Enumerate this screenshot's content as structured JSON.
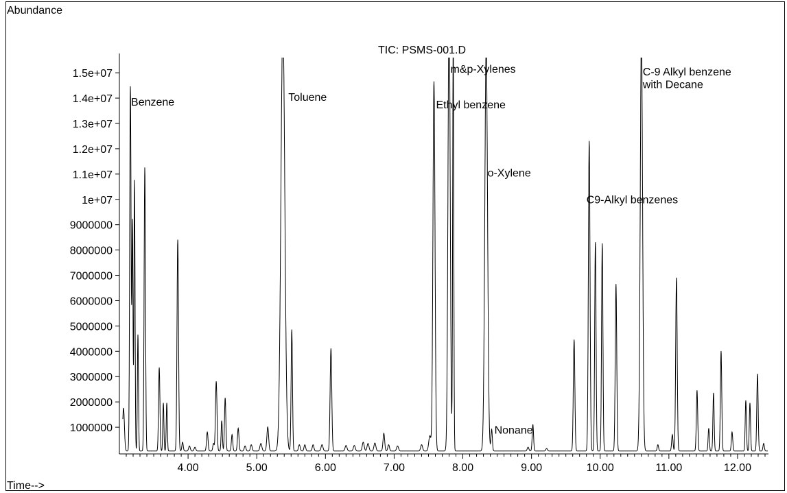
{
  "chart_data": {
    "type": "line",
    "title": "TIC: PSMS-001.D",
    "xlabel": "Time-->",
    "ylabel": "Abundance",
    "xlim": [
      3.0,
      12.45
    ],
    "ylim": [
      0,
      15600000
    ],
    "x_ticks": [
      {
        "value": 4.0,
        "label": "4.00"
      },
      {
        "value": 5.0,
        "label": "5.00"
      },
      {
        "value": 6.0,
        "label": "6.00"
      },
      {
        "value": 7.0,
        "label": "7.00"
      },
      {
        "value": 8.0,
        "label": "8.00"
      },
      {
        "value": 9.0,
        "label": "9.00"
      },
      {
        "value": 10.0,
        "label": "10.00"
      },
      {
        "value": 11.0,
        "label": "11.00"
      },
      {
        "value": 12.0,
        "label": "12.00"
      }
    ],
    "y_ticks": [
      {
        "value": 1000000,
        "label": "1000000"
      },
      {
        "value": 2000000,
        "label": "2000000"
      },
      {
        "value": 3000000,
        "label": "3000000"
      },
      {
        "value": 4000000,
        "label": "4000000"
      },
      {
        "value": 5000000,
        "label": "5000000"
      },
      {
        "value": 6000000,
        "label": "6000000"
      },
      {
        "value": 7000000,
        "label": "7000000"
      },
      {
        "value": 8000000,
        "label": "8000000"
      },
      {
        "value": 9000000,
        "label": "9000000"
      },
      {
        "value": 10000000,
        "label": "1e+07"
      },
      {
        "value": 11000000,
        "label": "1.1e+07"
      },
      {
        "value": 12000000,
        "label": "1.2e+07"
      },
      {
        "value": 13000000,
        "label": "1.3e+07"
      },
      {
        "value": 14000000,
        "label": "1.4e+07"
      },
      {
        "value": 15000000,
        "label": "1.5e+07"
      }
    ],
    "baseline": 60000,
    "peaks": [
      {
        "t": 3.06,
        "h": 1700000,
        "w": 0.013
      },
      {
        "t": 3.16,
        "h": 14400000,
        "w": 0.01
      },
      {
        "t": 3.19,
        "h": 9000000,
        "w": 0.008
      },
      {
        "t": 3.22,
        "h": 10700000,
        "w": 0.008
      },
      {
        "t": 3.27,
        "h": 4600000,
        "w": 0.008
      },
      {
        "t": 3.37,
        "h": 11200000,
        "w": 0.01
      },
      {
        "t": 3.58,
        "h": 3300000,
        "w": 0.01
      },
      {
        "t": 3.64,
        "h": 1900000,
        "w": 0.008
      },
      {
        "t": 3.69,
        "h": 1900000,
        "w": 0.008
      },
      {
        "t": 3.85,
        "h": 8350000,
        "w": 0.011
      },
      {
        "t": 3.92,
        "h": 350000,
        "w": 0.01
      },
      {
        "t": 4.02,
        "h": 200000,
        "w": 0.012
      },
      {
        "t": 4.1,
        "h": 150000,
        "w": 0.012
      },
      {
        "t": 4.28,
        "h": 750000,
        "w": 0.011
      },
      {
        "t": 4.37,
        "h": 300000,
        "w": 0.01
      },
      {
        "t": 4.41,
        "h": 2750000,
        "w": 0.011
      },
      {
        "t": 4.49,
        "h": 1200000,
        "w": 0.009
      },
      {
        "t": 4.54,
        "h": 2100000,
        "w": 0.01
      },
      {
        "t": 4.64,
        "h": 650000,
        "w": 0.01
      },
      {
        "t": 4.73,
        "h": 900000,
        "w": 0.011
      },
      {
        "t": 4.83,
        "h": 200000,
        "w": 0.012
      },
      {
        "t": 4.92,
        "h": 250000,
        "w": 0.012
      },
      {
        "t": 5.06,
        "h": 300000,
        "w": 0.014
      },
      {
        "t": 5.16,
        "h": 950000,
        "w": 0.013
      },
      {
        "t": 5.38,
        "h": 17000000,
        "w": 0.028
      },
      {
        "t": 5.51,
        "h": 4800000,
        "w": 0.01
      },
      {
        "t": 5.62,
        "h": 250000,
        "w": 0.012
      },
      {
        "t": 5.7,
        "h": 250000,
        "w": 0.012
      },
      {
        "t": 5.82,
        "h": 250000,
        "w": 0.012
      },
      {
        "t": 5.95,
        "h": 250000,
        "w": 0.014
      },
      {
        "t": 6.08,
        "h": 4050000,
        "w": 0.012
      },
      {
        "t": 6.3,
        "h": 220000,
        "w": 0.014
      },
      {
        "t": 6.42,
        "h": 220000,
        "w": 0.014
      },
      {
        "t": 6.55,
        "h": 350000,
        "w": 0.014
      },
      {
        "t": 6.62,
        "h": 300000,
        "w": 0.014
      },
      {
        "t": 6.72,
        "h": 320000,
        "w": 0.014
      },
      {
        "t": 6.85,
        "h": 700000,
        "w": 0.012
      },
      {
        "t": 6.92,
        "h": 250000,
        "w": 0.012
      },
      {
        "t": 7.05,
        "h": 200000,
        "w": 0.014
      },
      {
        "t": 7.4,
        "h": 250000,
        "w": 0.014
      },
      {
        "t": 7.52,
        "h": 600000,
        "w": 0.016
      },
      {
        "t": 7.58,
        "h": 14600000,
        "w": 0.015
      },
      {
        "t": 7.8,
        "h": 18000000,
        "w": 0.016
      },
      {
        "t": 7.86,
        "h": 16500000,
        "w": 0.008
      },
      {
        "t": 8.34,
        "h": 16000000,
        "w": 0.02
      },
      {
        "t": 8.42,
        "h": 850000,
        "w": 0.01
      },
      {
        "t": 8.95,
        "h": 150000,
        "w": 0.012
      },
      {
        "t": 9.02,
        "h": 1050000,
        "w": 0.01
      },
      {
        "t": 9.22,
        "h": 100000,
        "w": 0.012
      },
      {
        "t": 9.62,
        "h": 4400000,
        "w": 0.011
      },
      {
        "t": 9.84,
        "h": 12250000,
        "w": 0.012
      },
      {
        "t": 9.93,
        "h": 8250000,
        "w": 0.01
      },
      {
        "t": 10.03,
        "h": 8200000,
        "w": 0.01
      },
      {
        "t": 10.23,
        "h": 6600000,
        "w": 0.011
      },
      {
        "t": 10.6,
        "h": 16500000,
        "w": 0.017
      },
      {
        "t": 10.84,
        "h": 250000,
        "w": 0.01
      },
      {
        "t": 11.05,
        "h": 650000,
        "w": 0.01
      },
      {
        "t": 11.11,
        "h": 6850000,
        "w": 0.011
      },
      {
        "t": 11.41,
        "h": 2400000,
        "w": 0.01
      },
      {
        "t": 11.58,
        "h": 900000,
        "w": 0.009
      },
      {
        "t": 11.65,
        "h": 2300000,
        "w": 0.009
      },
      {
        "t": 11.76,
        "h": 3950000,
        "w": 0.01
      },
      {
        "t": 11.92,
        "h": 750000,
        "w": 0.01
      },
      {
        "t": 12.12,
        "h": 2000000,
        "w": 0.009
      },
      {
        "t": 12.18,
        "h": 1900000,
        "w": 0.009
      },
      {
        "t": 12.29,
        "h": 3050000,
        "w": 0.01
      },
      {
        "t": 12.38,
        "h": 300000,
        "w": 0.01
      }
    ],
    "annotations": [
      {
        "text": "Benzene",
        "t": 3.17,
        "y": 13700000
      },
      {
        "text": "Toluene",
        "t": 5.46,
        "y": 13900000
      },
      {
        "text": "Ethyl benzene",
        "t": 7.61,
        "y": 13600000
      },
      {
        "text": "m&p-Xylenes",
        "t": 7.82,
        "y": 15000000
      },
      {
        "text": "o-Xylene",
        "t": 8.36,
        "y": 10900000
      },
      {
        "text": "Nonane",
        "t": 8.46,
        "y": 750000
      },
      {
        "text": "C9-Alkyl benzenes",
        "t": 9.8,
        "y": 9850000
      },
      {
        "text": "C-9 Alkyl benzene",
        "t": 10.62,
        "y": 14900000
      },
      {
        "text": "with Decane",
        "t": 10.62,
        "y": 14400000
      }
    ]
  }
}
